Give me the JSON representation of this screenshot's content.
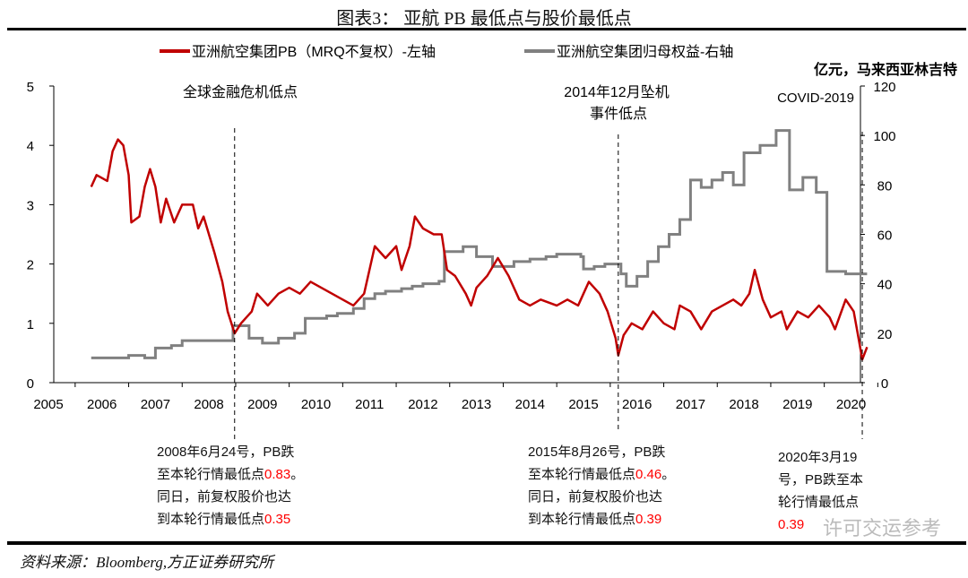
{
  "title": "图表3： 亚航 PB 最低点与股价最低点",
  "source": "资料来源：Bloomberg,方正证券研究所",
  "watermark": "许可交运参考",
  "notes": {
    "n1": {
      "l1": "2008年6月24号，PB跌",
      "l2": "至本轮行情最低点",
      "v2": "0.83",
      "e2": "。",
      "l3": "同日，前复权股价也达",
      "l4": "到本轮行情最低点",
      "v4": "0.35"
    },
    "n2": {
      "l1": "2015年8月26号，PB跌",
      "l2": "至本轮行情最低点",
      "v2": "0.46",
      "e2": "。",
      "l3": "同日，前复权股价也达",
      "l4": "到本轮行情最低点",
      "v4": "0.39"
    },
    "n3": {
      "l1": "2020年3月19",
      "l2": "号，PB跌至本",
      "l3": "轮行情最低点",
      "v4": "0.39"
    }
  },
  "chart_data": {
    "type": "line",
    "xlim": [
      2005,
      2020.5
    ],
    "x_ticks": [
      "2005",
      "2006",
      "2007",
      "2008",
      "2009",
      "2010",
      "2011",
      "2012",
      "2013",
      "2014",
      "2015",
      "2016",
      "2017",
      "2018",
      "2019",
      "2020"
    ],
    "y_left": {
      "lim": [
        0,
        5
      ],
      "ticks": [
        "0",
        "1",
        "2",
        "3",
        "4",
        "5"
      ]
    },
    "y_right": {
      "lim": [
        0,
        120
      ],
      "ticks": [
        "0",
        "20",
        "40",
        "60",
        "80",
        "100",
        "120"
      ],
      "label": "亿元，马来西亚林吉特"
    },
    "legend_position": "top",
    "annotations": [
      {
        "text": "全球金融危机低点",
        "x": 2008.48
      },
      {
        "text": "2014年12月坠机",
        "text2": "事件低点",
        "x": 2015.65
      },
      {
        "text": "COVID-2019",
        "x": 2020.21
      }
    ],
    "series": [
      {
        "name": "亚洲航空集团PB（MRQ不复权）-左轴",
        "axis": "left",
        "color": "#c00000",
        "points": [
          [
            2005.8,
            3.3
          ],
          [
            2005.9,
            3.5
          ],
          [
            2006.1,
            3.4
          ],
          [
            2006.2,
            3.9
          ],
          [
            2006.3,
            4.1
          ],
          [
            2006.4,
            4.0
          ],
          [
            2006.5,
            3.5
          ],
          [
            2006.55,
            2.7
          ],
          [
            2006.7,
            2.8
          ],
          [
            2006.8,
            3.3
          ],
          [
            2006.9,
            3.6
          ],
          [
            2007.0,
            3.3
          ],
          [
            2007.1,
            2.7
          ],
          [
            2007.2,
            3.1
          ],
          [
            2007.35,
            2.7
          ],
          [
            2007.5,
            3.0
          ],
          [
            2007.7,
            3.0
          ],
          [
            2007.8,
            2.6
          ],
          [
            2007.9,
            2.8
          ],
          [
            2008.0,
            2.5
          ],
          [
            2008.1,
            2.2
          ],
          [
            2008.25,
            1.7
          ],
          [
            2008.35,
            1.2
          ],
          [
            2008.48,
            0.83
          ],
          [
            2008.6,
            1.0
          ],
          [
            2008.8,
            1.2
          ],
          [
            2008.9,
            1.5
          ],
          [
            2009.0,
            1.4
          ],
          [
            2009.1,
            1.3
          ],
          [
            2009.3,
            1.5
          ],
          [
            2009.5,
            1.6
          ],
          [
            2009.7,
            1.5
          ],
          [
            2009.9,
            1.7
          ],
          [
            2010.1,
            1.6
          ],
          [
            2010.3,
            1.5
          ],
          [
            2010.5,
            1.4
          ],
          [
            2010.7,
            1.3
          ],
          [
            2010.9,
            1.5
          ],
          [
            2011.0,
            1.9
          ],
          [
            2011.1,
            2.3
          ],
          [
            2011.3,
            2.1
          ],
          [
            2011.5,
            2.3
          ],
          [
            2011.6,
            1.9
          ],
          [
            2011.75,
            2.3
          ],
          [
            2011.85,
            2.8
          ],
          [
            2012.0,
            2.6
          ],
          [
            2012.2,
            2.5
          ],
          [
            2012.35,
            2.5
          ],
          [
            2012.45,
            1.9
          ],
          [
            2012.6,
            1.8
          ],
          [
            2012.8,
            1.5
          ],
          [
            2012.9,
            1.3
          ],
          [
            2013.0,
            1.6
          ],
          [
            2013.2,
            1.8
          ],
          [
            2013.4,
            2.1
          ],
          [
            2013.6,
            1.8
          ],
          [
            2013.8,
            1.4
          ],
          [
            2014.0,
            1.3
          ],
          [
            2014.2,
            1.4
          ],
          [
            2014.5,
            1.3
          ],
          [
            2014.7,
            1.4
          ],
          [
            2014.9,
            1.3
          ],
          [
            2015.0,
            1.5
          ],
          [
            2015.1,
            1.7
          ],
          [
            2015.3,
            1.5
          ],
          [
            2015.45,
            1.2
          ],
          [
            2015.6,
            0.75
          ],
          [
            2015.65,
            0.46
          ],
          [
            2015.75,
            0.8
          ],
          [
            2015.9,
            1.0
          ],
          [
            2016.1,
            0.9
          ],
          [
            2016.3,
            1.2
          ],
          [
            2016.5,
            1.0
          ],
          [
            2016.7,
            0.9
          ],
          [
            2016.8,
            1.3
          ],
          [
            2017.0,
            1.2
          ],
          [
            2017.2,
            0.9
          ],
          [
            2017.4,
            1.2
          ],
          [
            2017.6,
            1.3
          ],
          [
            2017.8,
            1.4
          ],
          [
            2017.95,
            1.3
          ],
          [
            2018.1,
            1.5
          ],
          [
            2018.2,
            1.9
          ],
          [
            2018.35,
            1.4
          ],
          [
            2018.5,
            1.1
          ],
          [
            2018.7,
            1.2
          ],
          [
            2018.8,
            0.9
          ],
          [
            2019.0,
            1.2
          ],
          [
            2019.2,
            1.1
          ],
          [
            2019.4,
            1.3
          ],
          [
            2019.6,
            1.1
          ],
          [
            2019.7,
            0.9
          ],
          [
            2019.9,
            1.4
          ],
          [
            2020.05,
            1.2
          ],
          [
            2020.15,
            0.7
          ],
          [
            2020.21,
            0.39
          ],
          [
            2020.3,
            0.6
          ]
        ]
      },
      {
        "name": "亚洲航空集团归母权益-右轴",
        "axis": "right",
        "step": true,
        "color": "#808080",
        "points": [
          [
            2005.8,
            10
          ],
          [
            2006.5,
            11
          ],
          [
            2006.8,
            10
          ],
          [
            2007.0,
            14
          ],
          [
            2007.3,
            15
          ],
          [
            2007.5,
            17
          ],
          [
            2008.45,
            23
          ],
          [
            2008.75,
            18
          ],
          [
            2009.0,
            16
          ],
          [
            2009.3,
            18
          ],
          [
            2009.6,
            20
          ],
          [
            2009.8,
            26
          ],
          [
            2010.2,
            27
          ],
          [
            2010.4,
            28
          ],
          [
            2010.7,
            30
          ],
          [
            2010.9,
            34
          ],
          [
            2011.1,
            36
          ],
          [
            2011.3,
            37
          ],
          [
            2011.6,
            38
          ],
          [
            2011.8,
            39
          ],
          [
            2012.0,
            40
          ],
          [
            2012.3,
            41
          ],
          [
            2012.4,
            53
          ],
          [
            2012.75,
            55
          ],
          [
            2013.0,
            51
          ],
          [
            2013.3,
            47
          ],
          [
            2013.7,
            49
          ],
          [
            2014.0,
            50
          ],
          [
            2014.3,
            51
          ],
          [
            2014.5,
            52
          ],
          [
            2014.95,
            51
          ],
          [
            2015.0,
            46
          ],
          [
            2015.2,
            47
          ],
          [
            2015.4,
            48
          ],
          [
            2015.7,
            44
          ],
          [
            2015.8,
            39
          ],
          [
            2016.0,
            43
          ],
          [
            2016.2,
            49
          ],
          [
            2016.4,
            55
          ],
          [
            2016.6,
            60
          ],
          [
            2016.8,
            66
          ],
          [
            2017.0,
            82
          ],
          [
            2017.2,
            79
          ],
          [
            2017.4,
            82
          ],
          [
            2017.6,
            85
          ],
          [
            2017.8,
            80
          ],
          [
            2018.0,
            93
          ],
          [
            2018.3,
            96
          ],
          [
            2018.6,
            102
          ],
          [
            2018.85,
            78
          ],
          [
            2019.1,
            83
          ],
          [
            2019.35,
            77
          ],
          [
            2019.55,
            45
          ],
          [
            2019.9,
            44
          ],
          [
            2020.3,
            44
          ]
        ]
      }
    ]
  }
}
